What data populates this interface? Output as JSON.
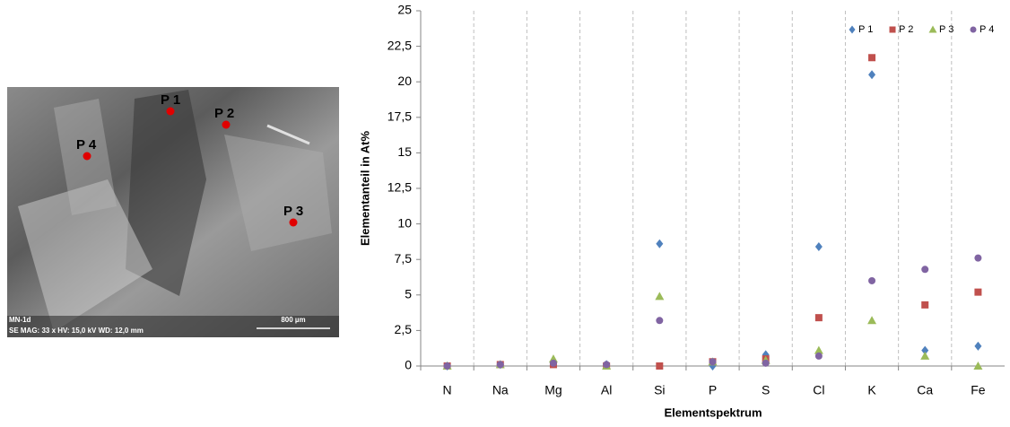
{
  "micrograph": {
    "sample": "MN-1d",
    "info": "SE  MAG: 33 x  HV: 15,0 kV  WD: 12,0 mm",
    "scale": "800 µm",
    "points": [
      "P 1",
      "P 2",
      "P 3",
      "P 4"
    ]
  },
  "chart_data": {
    "type": "scatter",
    "x_label": "Elementspektrum",
    "y_label": "Elementanteil in At%",
    "categories": [
      "N",
      "Na",
      "Mg",
      "Al",
      "Si",
      "P",
      "S",
      "Cl",
      "K",
      "Ca",
      "Fe"
    ],
    "series": [
      {
        "name": "P 1",
        "color": "#4f81bd",
        "marker": "diamond",
        "values": [
          0,
          0.1,
          0.2,
          0.1,
          8.6,
          0,
          0.8,
          8.4,
          20.5,
          1.1,
          1.4
        ]
      },
      {
        "name": "P 2",
        "color": "#c0504d",
        "marker": "square",
        "values": [
          0,
          0.1,
          0.1,
          0,
          0,
          0.3,
          0.5,
          3.4,
          21.7,
          4.3,
          5.2
        ]
      },
      {
        "name": "P 3",
        "color": "#9bbb59",
        "marker": "triangle",
        "values": [
          0,
          0.1,
          0.5,
          0,
          4.9,
          0.3,
          0.4,
          1.1,
          3.2,
          0.7,
          0
        ]
      },
      {
        "name": "P 4",
        "color": "#8064a2",
        "marker": "circle",
        "values": [
          0,
          0.1,
          0.2,
          0.1,
          3.2,
          0.3,
          0.2,
          0.7,
          6.0,
          6.8,
          7.6
        ]
      }
    ],
    "ylim": [
      0,
      25
    ],
    "yticks": [
      0,
      {
        "value": 2.5,
        "label": "2,5"
      },
      5,
      {
        "value": 7.5,
        "label": "7,5"
      },
      10,
      {
        "value": 12.5,
        "label": "12,5"
      },
      15,
      {
        "value": 17.5,
        "label": "17,5"
      },
      20,
      {
        "value": 22.5,
        "label": "22,5"
      },
      25
    ],
    "grid": true,
    "legend": "top-right"
  }
}
